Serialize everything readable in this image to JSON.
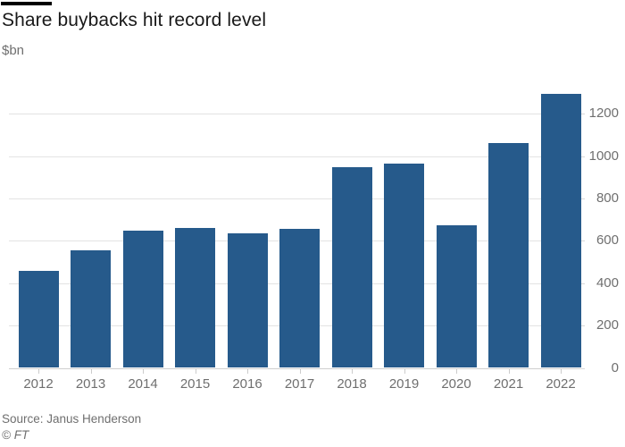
{
  "header": {
    "title": "Share buybacks hit record level",
    "subtitle": "$bn"
  },
  "footer": {
    "source": "Source: Janus Henderson",
    "copyright": "© FT"
  },
  "chart_data": {
    "type": "bar",
    "title": "Share buybacks hit record level",
    "subtitle_unit": "$bn",
    "xlabel": "",
    "ylabel": "$bn",
    "categories": [
      "2012",
      "2013",
      "2014",
      "2015",
      "2016",
      "2017",
      "2018",
      "2019",
      "2020",
      "2021",
      "2022"
    ],
    "values": [
      460,
      555,
      650,
      660,
      635,
      655,
      950,
      965,
      675,
      1060,
      1295
    ],
    "ylim": [
      0,
      1340
    ],
    "yticks": [
      0,
      200,
      400,
      600,
      800,
      1000,
      1200
    ],
    "grid": "horizontal",
    "axis_side": "right",
    "legend_position": "none",
    "source": "Source: Janus Henderson",
    "colors": {
      "bar": "#265a8b",
      "gridline": "#e3e3e3",
      "baseline": "#cfcfcf",
      "tick": "#cccccc",
      "axis_text": "#6f6f6f",
      "title_text": "#191919",
      "background": "#ffffff",
      "brand_tick": "#000000"
    }
  }
}
